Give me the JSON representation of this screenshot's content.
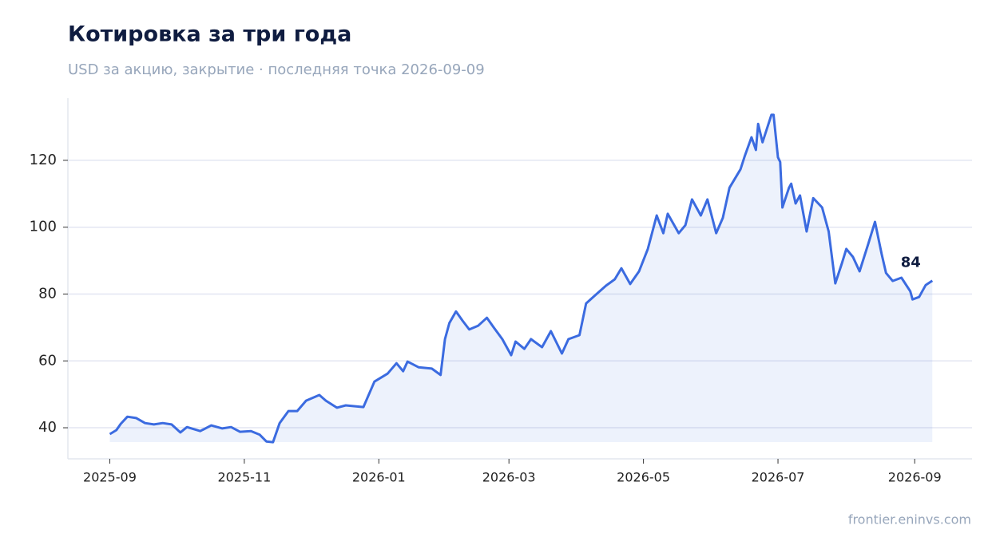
{
  "chart_data": {
    "type": "line",
    "title": "Котировка за три года",
    "subtitle": "USD за акцию, закрытие · последняя точка 2026-09-09",
    "source": "frontier.eninvs.com",
    "x": [
      "2025-09-01",
      "2025-09-04",
      "2025-09-06",
      "2025-09-09",
      "2025-09-13",
      "2025-09-17",
      "2025-09-21",
      "2025-09-25",
      "2025-09-29",
      "2025-10-03",
      "2025-10-06",
      "2025-10-12",
      "2025-10-17",
      "2025-10-22",
      "2025-10-26",
      "2025-10-30",
      "2025-11-04",
      "2025-11-08",
      "2025-11-11",
      "2025-11-14",
      "2025-11-17",
      "2025-11-21",
      "2025-11-25",
      "2025-11-29",
      "2025-12-05",
      "2025-12-08",
      "2025-12-13",
      "2025-12-17",
      "2025-12-25",
      "2025-12-30",
      "2026-01-05",
      "2026-01-09",
      "2026-01-12",
      "2026-01-14",
      "2026-01-19",
      "2026-01-25",
      "2026-01-29",
      "2026-01-31",
      "2026-02-02",
      "2026-02-05",
      "2026-02-08",
      "2026-02-11",
      "2026-02-15",
      "2026-02-19",
      "2026-02-22",
      "2026-02-26",
      "2026-03-02",
      "2026-03-04",
      "2026-03-08",
      "2026-03-11",
      "2026-03-16",
      "2026-03-20",
      "2026-03-25",
      "2026-03-28",
      "2026-04-02",
      "2026-04-05",
      "2026-04-09",
      "2026-04-14",
      "2026-04-18",
      "2026-04-21",
      "2026-04-25",
      "2026-04-29",
      "2026-05-03",
      "2026-05-07",
      "2026-05-10",
      "2026-05-12",
      "2026-05-17",
      "2026-05-20",
      "2026-05-23",
      "2026-05-27",
      "2026-05-30",
      "2026-06-03",
      "2026-06-06",
      "2026-06-09",
      "2026-06-14",
      "2026-06-16",
      "2026-06-19",
      "2026-06-21",
      "2026-06-22",
      "2026-06-24",
      "2026-06-28",
      "2026-06-29",
      "2026-07-01",
      "2026-07-02",
      "2026-07-03",
      "2026-07-06",
      "2026-07-07",
      "2026-07-09",
      "2026-07-11",
      "2026-07-14",
      "2026-07-17",
      "2026-07-21",
      "2026-07-24",
      "2026-07-27",
      "2026-07-30",
      "2026-08-01",
      "2026-08-04",
      "2026-08-07",
      "2026-08-11",
      "2026-08-14",
      "2026-08-17",
      "2026-08-19",
      "2026-08-22",
      "2026-08-26",
      "2026-08-30",
      "2026-08-31",
      "2026-09-03",
      "2026-09-06",
      "2026-09-09"
    ],
    "series": [
      {
        "name": "Закрытие",
        "color": "#3b6be0",
        "values": [
          38.1,
          39.3,
          41.2,
          43.3,
          42.9,
          41.4,
          41.0,
          41.4,
          41.0,
          38.6,
          40.2,
          39.0,
          40.7,
          39.8,
          40.2,
          38.8,
          39.0,
          37.9,
          35.9,
          35.7,
          41.4,
          45.0,
          45.0,
          48.1,
          49.8,
          48.1,
          46.0,
          46.7,
          46.2,
          53.8,
          56.2,
          59.3,
          56.9,
          59.8,
          58.1,
          57.7,
          55.8,
          66.5,
          71.3,
          74.8,
          72.0,
          69.4,
          70.5,
          72.9,
          70.1,
          66.5,
          61.7,
          65.8,
          63.6,
          66.5,
          64.1,
          68.9,
          62.2,
          66.5,
          67.7,
          77.2,
          79.6,
          82.5,
          84.4,
          87.7,
          83.0,
          86.8,
          93.5,
          103.5,
          98.2,
          104.0,
          98.2,
          100.6,
          108.3,
          103.5,
          108.3,
          98.2,
          102.8,
          111.8,
          117.3,
          121.4,
          126.9,
          123.1,
          130.9,
          125.4,
          133.6,
          133.6,
          120.9,
          119.5,
          105.9,
          111.8,
          113.0,
          107.1,
          109.5,
          98.7,
          108.7,
          105.9,
          98.7,
          83.2,
          89.2,
          93.5,
          91.1,
          86.8,
          95.1,
          101.6,
          92.0,
          86.3,
          83.9,
          84.9,
          80.8,
          78.4,
          79.1,
          82.7,
          84
        ]
      }
    ],
    "xlim": [
      "2025-08-13",
      "2026-09-27"
    ],
    "xticks": [
      {
        "value": "2025-09-01",
        "label": "2025-09"
      },
      {
        "value": "2025-11-01",
        "label": "2025-11"
      },
      {
        "value": "2026-01-01",
        "label": "2026-01"
      },
      {
        "value": "2026-03-01",
        "label": "2026-03"
      },
      {
        "value": "2026-05-01",
        "label": "2026-05"
      },
      {
        "value": "2026-07-01",
        "label": "2026-07"
      },
      {
        "value": "2026-09-01",
        "label": "2026-09"
      }
    ],
    "ylim": [
      30.7,
      138.6
    ],
    "yticks": [
      40,
      60,
      80,
      100,
      120
    ],
    "grid": true
  }
}
